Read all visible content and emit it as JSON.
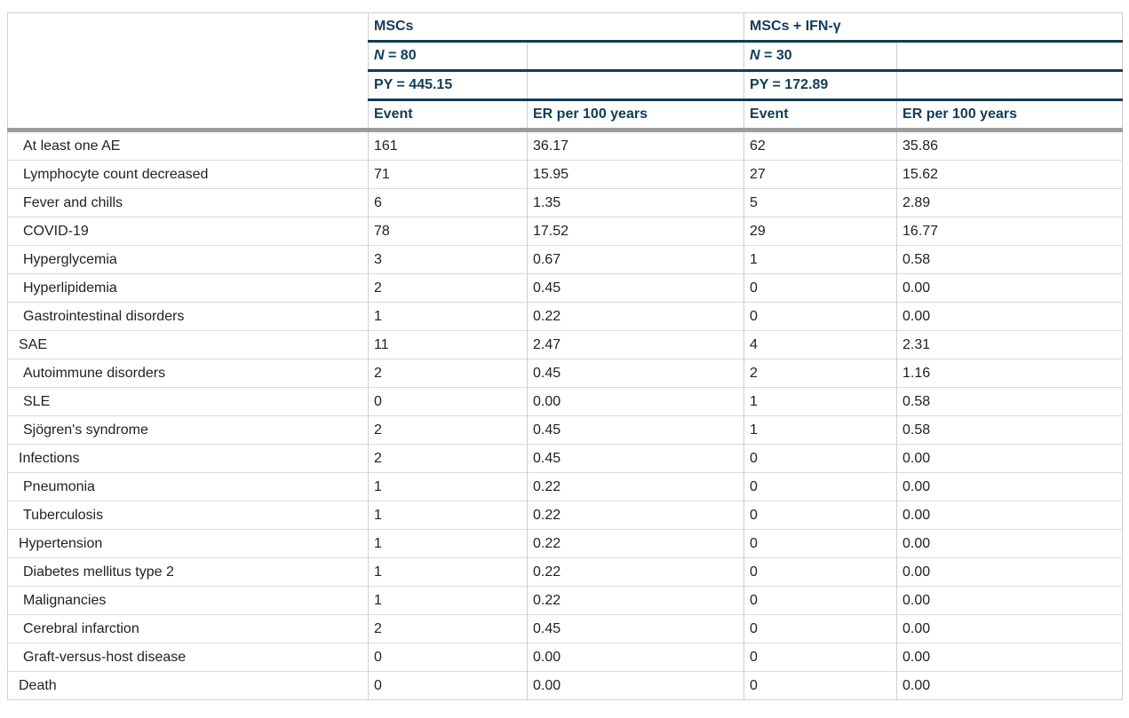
{
  "table": {
    "colors": {
      "navy": "#123b59",
      "thick_divider": "#9c9c9c",
      "grid": "#cfcfcf",
      "body_text": "#222222"
    },
    "groups": [
      {
        "name": "MSCs",
        "n_italic": "N",
        "n_rest": " = 80",
        "py": "PY = 445.15"
      },
      {
        "name": "MSCs + IFN-γ",
        "n_italic": "N",
        "n_rest": " = 30",
        "py": "PY = 172.89"
      }
    ],
    "subheaders": {
      "event": "Event",
      "er": "ER per 100 years"
    },
    "rows": [
      {
        "label": "At least one AE",
        "indent": 1,
        "msc_event": "161",
        "msc_er": "36.17",
        "ifn_event": "62",
        "ifn_er": "35.86"
      },
      {
        "label": "Lymphocyte count decreased",
        "indent": 1,
        "msc_event": "71",
        "msc_er": "15.95",
        "ifn_event": "27",
        "ifn_er": "15.62"
      },
      {
        "label": "Fever and chills",
        "indent": 1,
        "msc_event": "6",
        "msc_er": "1.35",
        "ifn_event": "5",
        "ifn_er": "2.89"
      },
      {
        "label": "COVID-19",
        "indent": 1,
        "msc_event": "78",
        "msc_er": "17.52",
        "ifn_event": "29",
        "ifn_er": "16.77"
      },
      {
        "label": "Hyperglycemia",
        "indent": 1,
        "msc_event": "3",
        "msc_er": "0.67",
        "ifn_event": "1",
        "ifn_er": "0.58"
      },
      {
        "label": "Hyperlipidemia",
        "indent": 1,
        "msc_event": "2",
        "msc_er": "0.45",
        "ifn_event": "0",
        "ifn_er": "0.00"
      },
      {
        "label": "Gastrointestinal disorders",
        "indent": 1,
        "msc_event": "1",
        "msc_er": "0.22",
        "ifn_event": "0",
        "ifn_er": "0.00"
      },
      {
        "label": "SAE",
        "indent": 0,
        "msc_event": "11",
        "msc_er": "2.47",
        "ifn_event": "4",
        "ifn_er": "2.31"
      },
      {
        "label": "Autoimmune disorders",
        "indent": 1,
        "msc_event": "2",
        "msc_er": "0.45",
        "ifn_event": "2",
        "ifn_er": "1.16"
      },
      {
        "label": "SLE",
        "indent": 1,
        "msc_event": "0",
        "msc_er": "0.00",
        "ifn_event": "1",
        "ifn_er": "0.58"
      },
      {
        "label": "Sjögren's syndrome",
        "indent": 1,
        "msc_event": "2",
        "msc_er": "0.45",
        "ifn_event": "1",
        "ifn_er": "0.58"
      },
      {
        "label": "Infections",
        "indent": 0,
        "msc_event": "2",
        "msc_er": "0.45",
        "ifn_event": "0",
        "ifn_er": "0.00"
      },
      {
        "label": "Pneumonia",
        "indent": 1,
        "msc_event": "1",
        "msc_er": "0.22",
        "ifn_event": "0",
        "ifn_er": "0.00"
      },
      {
        "label": "Tuberculosis",
        "indent": 1,
        "msc_event": "1",
        "msc_er": "0.22",
        "ifn_event": "0",
        "ifn_er": "0.00"
      },
      {
        "label": "Hypertension",
        "indent": 0,
        "msc_event": "1",
        "msc_er": "0.22",
        "ifn_event": "0",
        "ifn_er": "0.00"
      },
      {
        "label": "Diabetes mellitus type 2",
        "indent": 1,
        "msc_event": "1",
        "msc_er": "0.22",
        "ifn_event": "0",
        "ifn_er": "0.00"
      },
      {
        "label": "Malignancies",
        "indent": 1,
        "msc_event": "1",
        "msc_er": "0.22",
        "ifn_event": "0",
        "ifn_er": "0.00"
      },
      {
        "label": "Cerebral infarction",
        "indent": 1,
        "msc_event": "2",
        "msc_er": "0.45",
        "ifn_event": "0",
        "ifn_er": "0.00"
      },
      {
        "label": "Graft-versus-host disease",
        "indent": 1,
        "msc_event": "0",
        "msc_er": "0.00",
        "ifn_event": "0",
        "ifn_er": "0.00"
      },
      {
        "label": "Death",
        "indent": 0,
        "msc_event": "0",
        "msc_er": "0.00",
        "ifn_event": "0",
        "ifn_er": "0.00"
      }
    ]
  }
}
